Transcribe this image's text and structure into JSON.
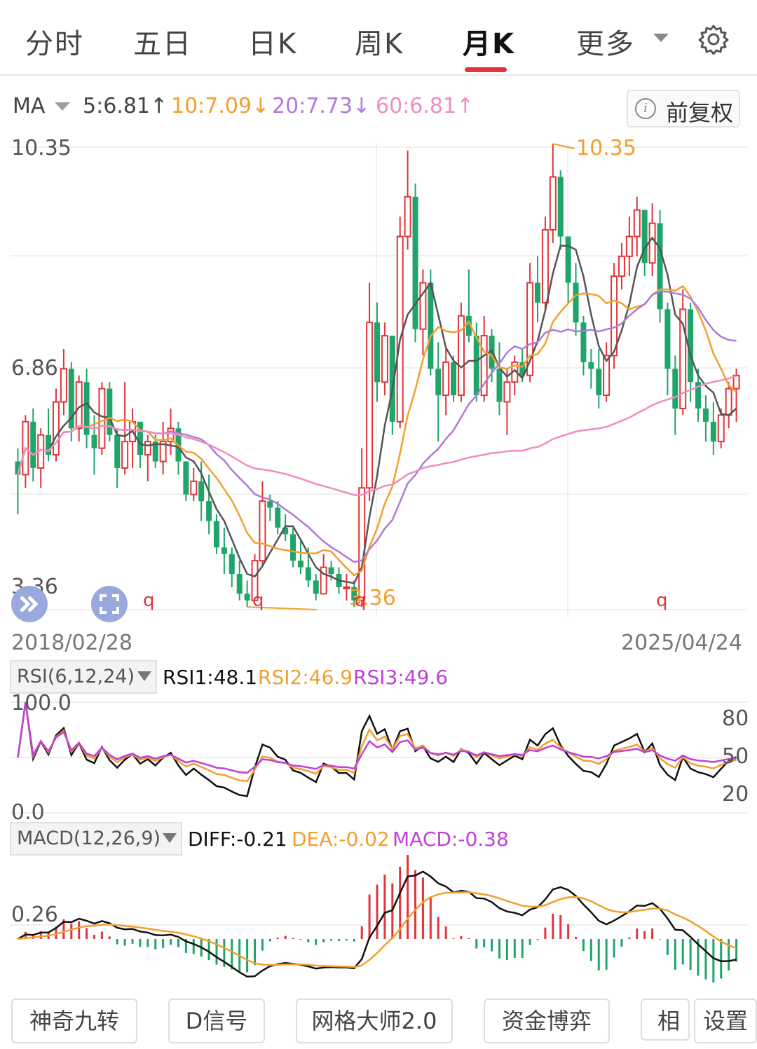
{
  "tabs": [
    "分时",
    "五日",
    "日K",
    "周K",
    "月K",
    "更多"
  ],
  "active_tab": "月K",
  "ma": {
    "label": "MA",
    "ma5": "5:6.81↑",
    "ma10": "10:7.09↓",
    "ma20": "20:7.73↓",
    "ma60": "60:6.81↑"
  },
  "restore_button": "前复权",
  "price_labels": {
    "high": "10.35",
    "mid": "6.86",
    "low": "3.36"
  },
  "annotations": {
    "max_marker": "10.35",
    "min_marker": "3.36",
    "signal": "q"
  },
  "dates": {
    "start": "2018/02/28",
    "end": "2025/04/24"
  },
  "rsi": {
    "selector": "RSI(6,12,24)",
    "rsi1": "RSI1:48.1",
    "rsi2": "RSI2:46.9",
    "rsi3": "RSI3:49.6",
    "top": "100.0",
    "bottom": "0.0",
    "levels": [
      "80",
      "50",
      "20"
    ]
  },
  "macd": {
    "selector": "MACD(12,26,9)",
    "diff": "DIFF:-0.21",
    "dea": "DEA:-0.02",
    "macd": "MACD:-0.38",
    "level": "0.26"
  },
  "bottom_buttons": [
    "神奇九转",
    "D信号",
    "网格大师2.0",
    "资金博弈",
    "相",
    "设置"
  ],
  "colors": {
    "up": "#e2343a",
    "down": "#1fa46a",
    "ma5": "#555555",
    "ma10": "#f0a030",
    "ma20": "#b07ad8",
    "ma60": "#f08cc0",
    "rsi1": "#111111",
    "rsi2": "#f0a030",
    "rsi3": "#c040d8",
    "diff": "#111111",
    "dea": "#f0a030",
    "macd_label": "#c040d8"
  },
  "chart_data": [
    {
      "type": "candlestick",
      "period": "monthly",
      "x_start": "2018/02/28",
      "x_end": "2025/04/24",
      "ylim": [
        3.36,
        10.35
      ],
      "y_labels": [
        "10.35",
        "6.86",
        "3.36"
      ],
      "max": 10.35,
      "min": 3.36,
      "ma": {
        "MA5": 6.81,
        "MA10": 7.09,
        "MA20": 7.73,
        "MA60": 6.81
      },
      "candles_ohlc": [
        [
          5.6,
          5.8,
          4.8,
          5.4
        ],
        [
          5.4,
          6.3,
          5.2,
          6.2
        ],
        [
          6.2,
          6.4,
          5.3,
          5.5
        ],
        [
          5.5,
          6.1,
          5.2,
          6.0
        ],
        [
          6.0,
          6.4,
          5.6,
          5.7
        ],
        [
          5.7,
          6.7,
          5.6,
          6.5
        ],
        [
          6.5,
          7.3,
          6.3,
          7.0
        ],
        [
          7.0,
          7.1,
          5.9,
          6.1
        ],
        [
          6.1,
          6.9,
          5.9,
          6.8
        ],
        [
          6.8,
          7.0,
          5.8,
          6.0
        ],
        [
          6.0,
          6.3,
          5.4,
          5.8
        ],
        [
          5.8,
          6.8,
          5.7,
          6.7
        ],
        [
          6.7,
          6.8,
          5.9,
          6.0
        ],
        [
          6.0,
          6.1,
          5.2,
          5.5
        ],
        [
          5.5,
          6.8,
          5.4,
          5.9
        ],
        [
          5.9,
          6.4,
          5.5,
          6.2
        ],
        [
          6.2,
          6.2,
          5.5,
          5.7
        ],
        [
          5.7,
          6.0,
          5.3,
          5.9
        ],
        [
          5.9,
          6.0,
          5.5,
          5.6
        ],
        [
          5.6,
          6.2,
          5.4,
          5.9
        ],
        [
          5.9,
          6.4,
          5.7,
          6.1
        ],
        [
          6.1,
          6.2,
          5.4,
          5.6
        ],
        [
          5.6,
          5.6,
          5.0,
          5.1
        ],
        [
          5.1,
          5.5,
          5.0,
          5.3
        ],
        [
          5.3,
          5.6,
          4.7,
          5.0
        ],
        [
          5.0,
          5.4,
          4.5,
          4.7
        ],
        [
          4.7,
          4.8,
          4.2,
          4.3
        ],
        [
          4.3,
          4.6,
          3.9,
          4.2
        ],
        [
          4.2,
          4.3,
          3.7,
          3.9
        ],
        [
          3.9,
          4.1,
          3.5,
          3.6
        ],
        [
          3.6,
          3.8,
          3.4,
          3.5
        ],
        [
          3.5,
          4.2,
          3.5,
          4.1
        ],
        [
          4.1,
          5.3,
          4.0,
          5.0
        ],
        [
          5.0,
          5.1,
          4.7,
          4.9
        ],
        [
          4.9,
          5.0,
          4.5,
          4.6
        ],
        [
          4.6,
          4.8,
          4.4,
          4.5
        ],
        [
          4.5,
          4.6,
          4.0,
          4.1
        ],
        [
          4.1,
          4.4,
          3.9,
          4.0
        ],
        [
          4.0,
          4.3,
          3.7,
          3.8
        ],
        [
          3.8,
          3.9,
          3.5,
          3.6
        ],
        [
          3.6,
          4.2,
          3.6,
          4.0
        ],
        [
          4.0,
          4.1,
          3.8,
          3.9
        ],
        [
          3.9,
          4.0,
          3.6,
          3.7
        ],
        [
          3.7,
          3.9,
          3.5,
          3.7
        ],
        [
          3.7,
          3.8,
          3.4,
          3.5
        ],
        [
          3.5,
          5.8,
          3.4,
          5.2
        ],
        [
          5.2,
          8.3,
          5.0,
          7.7
        ],
        [
          7.7,
          8.0,
          6.5,
          6.8
        ],
        [
          6.8,
          7.7,
          6.6,
          7.5
        ],
        [
          7.5,
          7.5,
          6.0,
          6.2
        ],
        [
          6.2,
          9.3,
          6.1,
          9.0
        ],
        [
          9.0,
          10.3,
          8.8,
          9.6
        ],
        [
          9.6,
          9.8,
          7.4,
          7.6
        ],
        [
          7.6,
          8.5,
          7.2,
          8.3
        ],
        [
          8.3,
          8.5,
          6.9,
          7.0
        ],
        [
          7.0,
          7.4,
          5.9,
          6.6
        ],
        [
          6.6,
          7.3,
          6.3,
          7.1
        ],
        [
          7.1,
          7.2,
          6.5,
          6.6
        ],
        [
          6.6,
          8.0,
          6.5,
          7.8
        ],
        [
          7.8,
          8.5,
          7.4,
          7.5
        ],
        [
          7.5,
          7.7,
          6.5,
          6.6
        ],
        [
          6.6,
          7.8,
          6.5,
          7.5
        ],
        [
          7.5,
          7.6,
          6.8,
          7.0
        ],
        [
          7.0,
          7.4,
          6.3,
          6.5
        ],
        [
          6.5,
          7.0,
          6.0,
          6.8
        ],
        [
          6.8,
          7.2,
          6.6,
          7.1
        ],
        [
          7.1,
          7.3,
          6.8,
          6.9
        ],
        [
          6.9,
          8.6,
          6.8,
          8.3
        ],
        [
          8.3,
          8.7,
          7.7,
          8.0
        ],
        [
          8.0,
          9.3,
          7.9,
          9.1
        ],
        [
          9.1,
          10.4,
          8.9,
          9.9
        ],
        [
          9.9,
          10.0,
          8.8,
          9.0
        ],
        [
          9.0,
          9.0,
          8.0,
          8.3
        ],
        [
          8.3,
          8.6,
          7.5,
          7.7
        ],
        [
          7.7,
          7.8,
          6.9,
          7.1
        ],
        [
          7.1,
          7.3,
          6.7,
          7.0
        ],
        [
          7.0,
          7.3,
          6.4,
          6.6
        ],
        [
          6.6,
          7.4,
          6.5,
          7.2
        ],
        [
          7.2,
          8.6,
          7.0,
          8.4
        ],
        [
          8.4,
          8.9,
          8.2,
          8.7
        ],
        [
          8.7,
          9.3,
          8.4,
          9.0
        ],
        [
          9.0,
          9.6,
          8.7,
          9.4
        ],
        [
          9.4,
          9.2,
          8.4,
          8.6
        ],
        [
          8.6,
          9.5,
          8.4,
          9.2
        ],
        [
          9.2,
          9.4,
          7.7,
          7.9
        ],
        [
          7.9,
          8.0,
          6.6,
          7.0
        ],
        [
          7.0,
          7.2,
          6.0,
          6.4
        ],
        [
          6.4,
          8.2,
          6.3,
          7.9
        ],
        [
          7.9,
          8.0,
          6.5,
          6.8
        ],
        [
          6.8,
          7.0,
          6.2,
          6.4
        ],
        [
          6.4,
          6.6,
          5.9,
          6.2
        ],
        [
          6.2,
          6.5,
          5.7,
          5.9
        ],
        [
          5.9,
          6.4,
          5.8,
          6.3
        ],
        [
          6.3,
          6.8,
          6.1,
          6.7
        ],
        [
          6.7,
          7.0,
          6.2,
          6.9
        ]
      ]
    },
    {
      "type": "line",
      "name": "RSI(6,12,24)",
      "ylim": [
        0,
        100
      ],
      "levels": [
        80,
        50,
        20
      ],
      "latest": {
        "RSI1": 48.1,
        "RSI2": 46.9,
        "RSI3": 49.6
      }
    },
    {
      "type": "bar",
      "name": "MACD(12,26,9)",
      "reference_level": 0.26,
      "latest": {
        "DIFF": -0.21,
        "DEA": -0.02,
        "MACD": -0.38
      }
    }
  ]
}
